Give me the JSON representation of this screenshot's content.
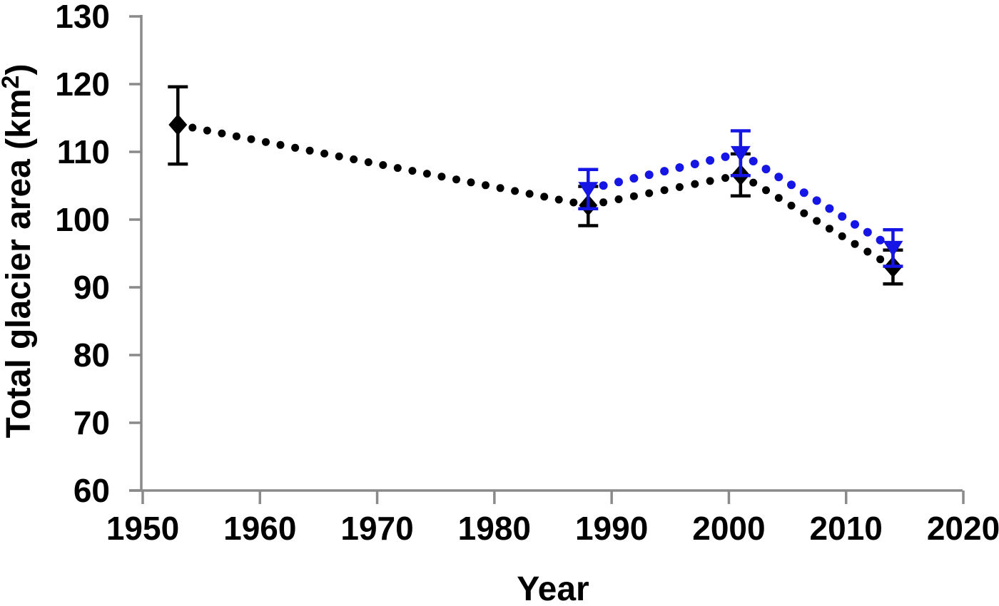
{
  "page": {
    "background": "#ffffff"
  },
  "chart_data": {
    "type": "line",
    "title": "",
    "xlabel": "Year",
    "ylabel": "Total glacier area (km²)",
    "ylabel_superscript": "2",
    "xlim": [
      1950,
      2020
    ],
    "ylim": [
      60,
      130
    ],
    "x_ticks": [
      "1950",
      "1960",
      "1970",
      "1980",
      "1990",
      "2000",
      "2010",
      "2020"
    ],
    "y_ticks": [
      "60",
      "70",
      "80",
      "90",
      "100",
      "110",
      "120",
      "130"
    ],
    "grid": false,
    "legend_position": "none",
    "line_style": "dotted",
    "axis_color": "#8a8a8a",
    "text_color": "#000000",
    "series": [
      {
        "name": "black series (diamond markers, error bars)",
        "color": "#000000",
        "marker": "diamond",
        "points": [
          {
            "x": 1953,
            "y": 114.0,
            "err_up": 5.6,
            "err_down": 5.8
          },
          {
            "x": 1988,
            "y": 102.1,
            "err_up": 2.8,
            "err_down": 3.0
          },
          {
            "x": 2001,
            "y": 106.6,
            "err_up": 3.1,
            "err_down": 3.1
          },
          {
            "x": 2014,
            "y": 93.0,
            "err_up": 2.5,
            "err_down": 2.5
          }
        ]
      },
      {
        "name": "blue series (triangle-down markers, error bars)",
        "color": "#1515e6",
        "marker": "triangle-down",
        "points": [
          {
            "x": 1988,
            "y": 104.5,
            "err_up": 2.9,
            "err_down": 2.9
          },
          {
            "x": 2001,
            "y": 109.8,
            "err_up": 3.3,
            "err_down": 3.3
          },
          {
            "x": 2014,
            "y": 95.8,
            "err_up": 2.7,
            "err_down": 2.7
          }
        ]
      }
    ]
  }
}
